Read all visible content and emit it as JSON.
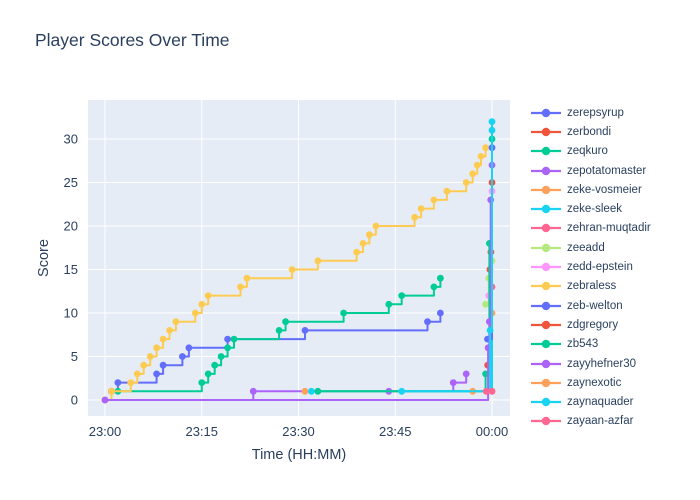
{
  "title": "Player Scores Over Time",
  "x_axis": {
    "title": "Time (HH:MM)",
    "tick_labels": [
      "23:00",
      "23:15",
      "23:30",
      "23:45",
      "00:00"
    ]
  },
  "y_axis": {
    "title": "Score",
    "tick_labels": [
      0,
      5,
      10,
      15,
      20,
      25,
      30
    ]
  },
  "colors": {
    "paper_background": "#FFFFFF",
    "plot_background": "#E5ECF6",
    "gridline": "#FFFFFF",
    "text": "#2A3F5F"
  },
  "chart_data": {
    "type": "line",
    "line_shape": "step-hv",
    "mode": "lines+markers",
    "title": "Player Scores Over Time",
    "xlabel": "Time (HH:MM)",
    "ylabel": "Score",
    "xlim": [
      "23:00",
      "00:00"
    ],
    "ylim": [
      0,
      32
    ],
    "grid": true,
    "legend_position": "right",
    "series": [
      {
        "name": "zerepsyrup",
        "color": "#636EFA",
        "times": [
          "23:01",
          "23:02",
          "23:08",
          "23:09",
          "23:12",
          "23:13",
          "23:19",
          "23:31",
          "23:50",
          "23:52"
        ],
        "scores": [
          1,
          2,
          3,
          4,
          5,
          6,
          7,
          8,
          9,
          10
        ]
      },
      {
        "name": "zerbondi",
        "color": "#EF553B",
        "times": [
          "23:01"
        ],
        "scores": [
          1
        ]
      },
      {
        "name": "zeqkuro",
        "color": "#00CC96",
        "times": [
          "23:02",
          "23:15",
          "23:16",
          "23:17",
          "23:18",
          "23:19",
          "23:20",
          "23:27",
          "23:28",
          "23:37",
          "23:44",
          "23:46",
          "23:51",
          "23:52"
        ],
        "scores": [
          1,
          2,
          3,
          4,
          5,
          6,
          7,
          8,
          9,
          10,
          11,
          12,
          13,
          14
        ]
      },
      {
        "name": "zepotatomaster",
        "color": "#AB63FA",
        "times": [
          "23:00",
          "23:23",
          "23:44",
          "23:54",
          "23:56"
        ],
        "scores": [
          0,
          1,
          1,
          2,
          3
        ]
      },
      {
        "name": "zeke-vosmeier",
        "color": "#FFA15A",
        "times": [
          "23:31",
          "00:00"
        ],
        "scores": [
          1,
          10
        ]
      },
      {
        "name": "zeke-sleek",
        "color": "#19D3F3",
        "times": [
          "23:32",
          "00:00"
        ],
        "scores": [
          1,
          31
        ]
      },
      {
        "name": "zehran-muqtadir",
        "color": "#FF6692",
        "times": [
          "00:00"
        ],
        "scores": [
          13
        ]
      },
      {
        "name": "zeeadd",
        "color": "#B6E880",
        "times": [
          "23:59:00",
          "23:59:30",
          "00:00"
        ],
        "scores": [
          11,
          14,
          16
        ]
      },
      {
        "name": "zedd-epstein",
        "color": "#FF97FF",
        "times": [
          "23:59:30",
          "00:00"
        ],
        "scores": [
          12,
          24
        ]
      },
      {
        "name": "zebraless",
        "color": "#FECB52",
        "times": [
          "23:00",
          "23:01",
          "23:04",
          "23:05",
          "23:06",
          "23:07",
          "23:08",
          "23:09",
          "23:10",
          "23:11",
          "23:14",
          "23:15",
          "23:16",
          "23:21",
          "23:22",
          "23:29",
          "23:33",
          "23:39",
          "23:40",
          "23:41",
          "23:42",
          "23:48",
          "23:49",
          "23:51",
          "23:53",
          "23:56",
          "23:57",
          "23:57:42",
          "23:58:18",
          "23:59:00"
        ],
        "scores": [
          0,
          1,
          2,
          3,
          4,
          5,
          6,
          7,
          8,
          9,
          10,
          11,
          12,
          13,
          14,
          15,
          16,
          17,
          18,
          19,
          20,
          21,
          22,
          23,
          24,
          25,
          26,
          27,
          28,
          29
        ]
      },
      {
        "name": "zeb-welton",
        "color": "#636EFA",
        "times": [
          "23:59:18",
          "00:00"
        ],
        "scores": [
          7,
          29
        ]
      },
      {
        "name": "zdgregory",
        "color": "#EF553B",
        "times": [
          "23:59:20",
          "23:59:40",
          "23:59:50",
          "00:00"
        ],
        "scores": [
          4,
          15,
          17,
          25
        ]
      },
      {
        "name": "zb543",
        "color": "#00CC96",
        "times": [
          "23:33",
          "23:59:00",
          "23:59:36",
          "00:00"
        ],
        "scores": [
          1,
          3,
          18,
          30
        ]
      },
      {
        "name": "zayyhefner30",
        "color": "#AB63FA",
        "times": [
          "23:00",
          "23:59:24",
          "23:59:36",
          "23:59:48",
          "00:00"
        ],
        "scores": [
          0,
          6,
          9,
          23,
          27
        ]
      },
      {
        "name": "zaynexotic",
        "color": "#FFA15A",
        "times": [
          "23:57",
          "00:00"
        ],
        "scores": [
          1,
          1
        ]
      },
      {
        "name": "zaynaquader",
        "color": "#19D3F3",
        "times": [
          "23:46",
          "23:59:42",
          "00:00"
        ],
        "scores": [
          1,
          8,
          32
        ]
      },
      {
        "name": "zayaan-azfar",
        "color": "#FF6692",
        "times": [
          "23:59:06",
          "00:00"
        ],
        "scores": [
          1,
          1
        ]
      }
    ]
  }
}
